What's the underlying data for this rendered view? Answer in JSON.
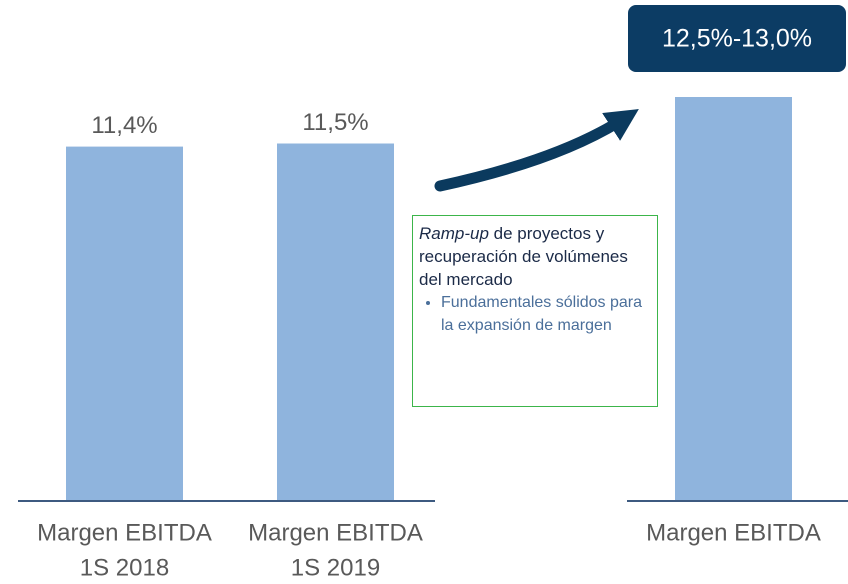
{
  "chart_data": {
    "type": "bar",
    "categories": [
      [
        "Margen EBITDA",
        "1S 2018"
      ],
      [
        "Margen EBITDA",
        "1S 2019"
      ],
      [
        "Margen EBITDA"
      ]
    ],
    "values": [
      11.4,
      11.5,
      13.0
    ],
    "value_labels": [
      "11,4%",
      "11,5%",
      "12,5%-13,0%"
    ],
    "color": "#8fb4dd",
    "ylim": [
      0,
      13
    ],
    "annotation": {
      "heading_italic": "Ramp-up",
      "heading": " de proyectos y recuperación de volúmenes del mercado",
      "bullets": [
        "Fundamentales sólidos para la expansión de margen"
      ]
    }
  }
}
